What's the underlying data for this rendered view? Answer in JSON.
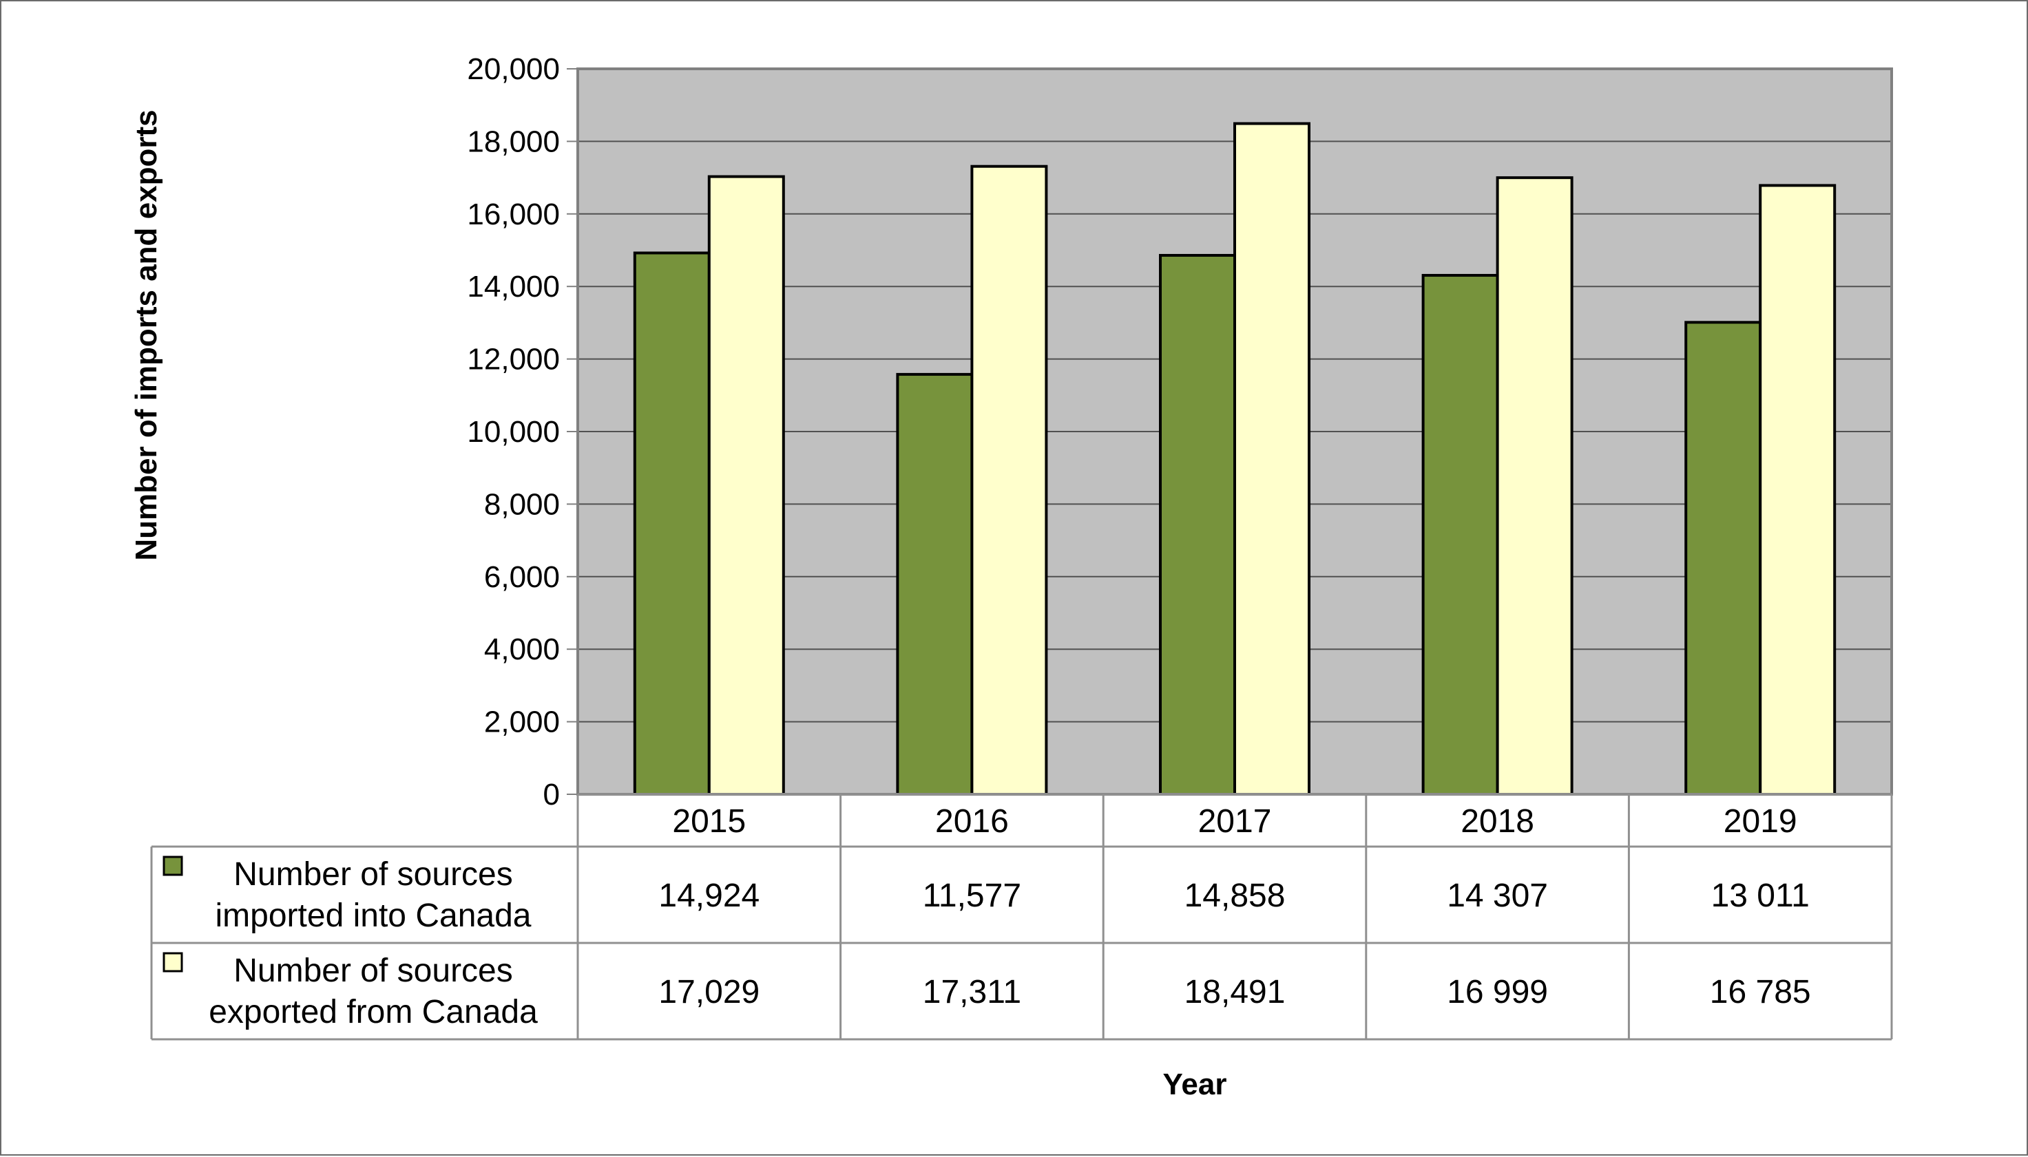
{
  "chart_data": {
    "type": "bar",
    "title": "",
    "xlabel": "Year",
    "ylabel": "Number of imports and exports",
    "categories": [
      "2015",
      "2016",
      "2017",
      "2018",
      "2019"
    ],
    "ylim": [
      0,
      20000
    ],
    "yticks": [
      0,
      2000,
      4000,
      6000,
      8000,
      10000,
      12000,
      14000,
      16000,
      18000,
      20000
    ],
    "ytick_labels": [
      "0",
      "2,000",
      "4,000",
      "6,000",
      "8,000",
      "10,000",
      "12,000",
      "14,000",
      "16,000",
      "18,000",
      "20,000"
    ],
    "grid": true,
    "legend_placement": "data-table",
    "plot_background": "#c0c0c0",
    "series": [
      {
        "name_lines": [
          "Number of sources",
          "imported into Canada"
        ],
        "color": "#77933c",
        "values": [
          14924,
          11577,
          14858,
          14307,
          13011
        ],
        "value_labels": [
          "14,924",
          "11,577",
          "14,858",
          "14 307",
          "13 011"
        ]
      },
      {
        "name_lines": [
          "Number of sources",
          "exported from Canada"
        ],
        "color": "#ffffcc",
        "values": [
          17029,
          17311,
          18491,
          16999,
          16785
        ],
        "value_labels": [
          "17,029",
          "17,311",
          "18,491",
          "16 999",
          "16 785"
        ]
      }
    ]
  }
}
